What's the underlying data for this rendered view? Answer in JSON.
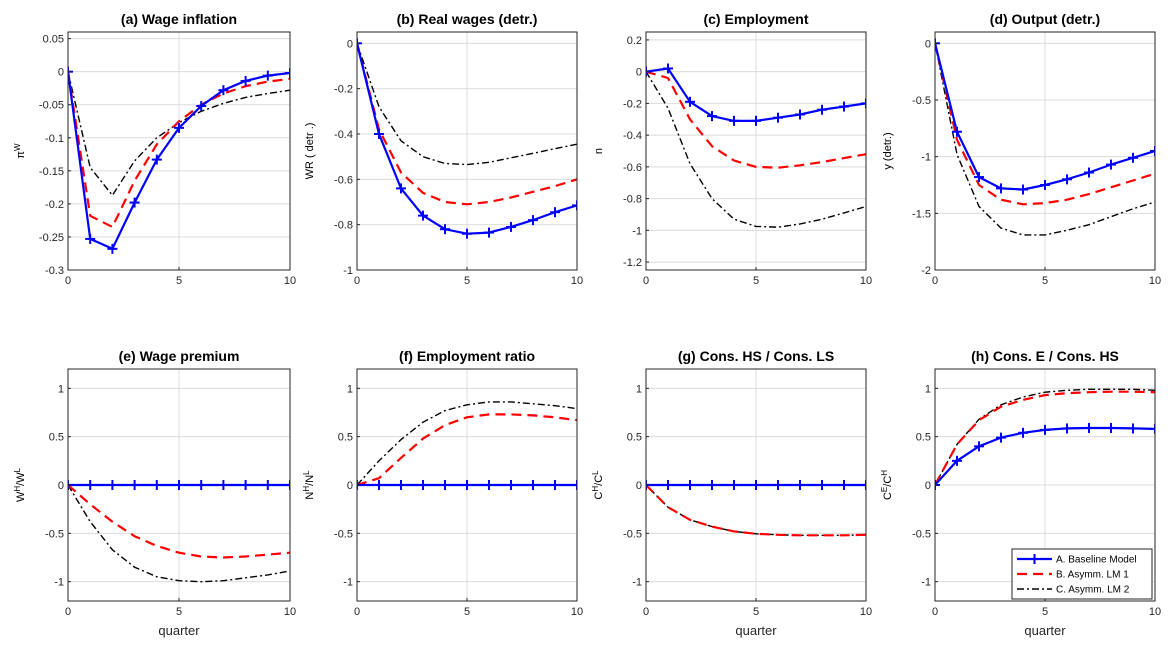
{
  "chart_data": [
    {
      "type": "line",
      "title": "(a) Wage inflation",
      "ylabel": "π^W",
      "xlabel": "",
      "xlim": [
        0,
        10
      ],
      "ylim": [
        -0.3,
        0.06
      ],
      "xticks": [
        0,
        5,
        10
      ],
      "xtick_labels": [
        "0",
        "5",
        "10"
      ],
      "yticks": [
        0.05,
        0,
        -0.05,
        -0.1,
        -0.15,
        -0.2,
        -0.25,
        -0.3
      ],
      "ytick_labels": [
        "0.05",
        "0",
        "-0.05",
        "-0.1",
        "-0.15",
        "-0.2",
        "-0.25",
        "-0.3"
      ],
      "grid": true,
      "x": [
        0,
        1,
        2,
        3,
        4,
        5,
        6,
        7,
        8,
        9,
        10
      ],
      "series": [
        {
          "name": "A. Baseline Model",
          "values": [
            0,
            -0.253,
            -0.268,
            -0.198,
            -0.133,
            -0.085,
            -0.052,
            -0.028,
            -0.014,
            -0.006,
            -0.002
          ]
        },
        {
          "name": "B. Asymm. LM 1",
          "values": [
            0,
            -0.218,
            -0.235,
            -0.165,
            -0.11,
            -0.075,
            -0.05,
            -0.033,
            -0.022,
            -0.015,
            -0.011
          ]
        },
        {
          "name": "C. Asymm. LM 2",
          "values": [
            0,
            -0.145,
            -0.187,
            -0.135,
            -0.1,
            -0.077,
            -0.06,
            -0.048,
            -0.039,
            -0.033,
            -0.028
          ]
        }
      ]
    },
    {
      "type": "line",
      "title": "(b) Real wages (detr.)",
      "ylabel": "WR  ( detr .)",
      "xlabel": "",
      "xlim": [
        0,
        10
      ],
      "ylim": [
        -1,
        0.05
      ],
      "xticks": [
        0,
        5,
        10
      ],
      "xtick_labels": [
        "0",
        "5",
        "10"
      ],
      "yticks": [
        0,
        -0.2,
        -0.4,
        -0.6,
        -0.8,
        -1
      ],
      "ytick_labels": [
        "0",
        "-0.2",
        "-0.4",
        "-0.6",
        "-0.8",
        "-1"
      ],
      "grid": true,
      "x": [
        0,
        1,
        2,
        3,
        4,
        5,
        6,
        7,
        8,
        9,
        10
      ],
      "series": [
        {
          "name": "A. Baseline Model",
          "values": [
            0,
            -0.4,
            -0.64,
            -0.76,
            -0.82,
            -0.84,
            -0.835,
            -0.81,
            -0.78,
            -0.745,
            -0.715
          ]
        },
        {
          "name": "B. Asymm. LM 1",
          "values": [
            0,
            -0.38,
            -0.57,
            -0.66,
            -0.7,
            -0.71,
            -0.7,
            -0.68,
            -0.655,
            -0.63,
            -0.6
          ]
        },
        {
          "name": "C. Asymm. LM 2",
          "values": [
            0,
            -0.28,
            -0.43,
            -0.5,
            -0.53,
            -0.535,
            -0.525,
            -0.505,
            -0.485,
            -0.465,
            -0.445
          ]
        }
      ]
    },
    {
      "type": "line",
      "title": "(c) Employment",
      "ylabel": "n",
      "xlabel": "",
      "xlim": [
        0,
        10
      ],
      "ylim": [
        -1.25,
        0.25
      ],
      "xticks": [
        0,
        5,
        10
      ],
      "xtick_labels": [
        "0",
        "5",
        "10"
      ],
      "yticks": [
        0.2,
        0,
        -0.2,
        -0.4,
        -0.6,
        -0.8,
        -1,
        -1.2
      ],
      "ytick_labels": [
        "0.2",
        "0",
        "-0.2",
        "-0.4",
        "-0.6",
        "-0.8",
        "-1",
        "-1.2"
      ],
      "grid": true,
      "x": [
        0,
        1,
        2,
        3,
        4,
        5,
        6,
        7,
        8,
        9,
        10
      ],
      "series": [
        {
          "name": "A. Baseline Model",
          "values": [
            0,
            0.02,
            -0.19,
            -0.28,
            -0.31,
            -0.31,
            -0.29,
            -0.27,
            -0.24,
            -0.22,
            -0.2
          ]
        },
        {
          "name": "B. Asymm. LM 1",
          "values": [
            0,
            -0.04,
            -0.3,
            -0.47,
            -0.56,
            -0.6,
            -0.605,
            -0.59,
            -0.57,
            -0.545,
            -0.52
          ]
        },
        {
          "name": "C. Asymm. LM 2",
          "values": [
            0,
            -0.23,
            -0.58,
            -0.8,
            -0.93,
            -0.975,
            -0.98,
            -0.96,
            -0.93,
            -0.89,
            -0.85
          ]
        }
      ]
    },
    {
      "type": "line",
      "title": "(d) Output (detr.)",
      "ylabel": "y  (detr.)",
      "xlabel": "",
      "xlim": [
        0,
        10
      ],
      "ylim": [
        -2,
        0.1
      ],
      "xticks": [
        0,
        5,
        10
      ],
      "xtick_labels": [
        "0",
        "5",
        "10"
      ],
      "yticks": [
        0,
        -0.5,
        -1,
        -1.5,
        -2
      ],
      "ytick_labels": [
        "0",
        "-0.5",
        "-1",
        "-1.5",
        "-2"
      ],
      "grid": true,
      "x": [
        0,
        1,
        2,
        3,
        4,
        5,
        6,
        7,
        8,
        9,
        10
      ],
      "series": [
        {
          "name": "A. Baseline Model",
          "values": [
            0,
            -0.78,
            -1.18,
            -1.28,
            -1.29,
            -1.25,
            -1.2,
            -1.14,
            -1.07,
            -1.01,
            -0.95
          ]
        },
        {
          "name": "B. Asymm. LM 1",
          "values": [
            0,
            -0.85,
            -1.25,
            -1.38,
            -1.42,
            -1.41,
            -1.38,
            -1.33,
            -1.27,
            -1.21,
            -1.15
          ]
        },
        {
          "name": "C. Asymm. LM 2",
          "values": [
            0,
            -0.98,
            -1.44,
            -1.63,
            -1.69,
            -1.69,
            -1.65,
            -1.6,
            -1.53,
            -1.46,
            -1.4
          ]
        }
      ]
    },
    {
      "type": "line",
      "title": "(e) Wage premium",
      "ylabel": "W^H/W^L",
      "xlabel": "quarter",
      "xlim": [
        0,
        10
      ],
      "ylim": [
        -1.2,
        1.2
      ],
      "xticks": [
        0,
        5,
        10
      ],
      "xtick_labels": [
        "0",
        "5",
        "10"
      ],
      "yticks": [
        1,
        0.5,
        0,
        -0.5,
        -1
      ],
      "ytick_labels": [
        "1",
        "0.5",
        "0",
        "-0.5",
        "-1"
      ],
      "grid": true,
      "x": [
        0,
        1,
        2,
        3,
        4,
        5,
        6,
        7,
        8,
        9,
        10
      ],
      "series": [
        {
          "name": "A. Baseline Model",
          "values": [
            0,
            0,
            0,
            0,
            0,
            0,
            0,
            0,
            0,
            0,
            0
          ]
        },
        {
          "name": "B. Asymm. LM 1",
          "values": [
            0,
            -0.2,
            -0.38,
            -0.53,
            -0.63,
            -0.7,
            -0.74,
            -0.75,
            -0.74,
            -0.72,
            -0.7
          ]
        },
        {
          "name": "C. Asymm. LM 2",
          "values": [
            0,
            -0.38,
            -0.67,
            -0.85,
            -0.95,
            -0.99,
            -1.0,
            -0.99,
            -0.96,
            -0.93,
            -0.89
          ]
        }
      ]
    },
    {
      "type": "line",
      "title": "(f) Employment ratio",
      "ylabel": "N^H/N^L",
      "xlabel": "",
      "xlim": [
        0,
        10
      ],
      "ylim": [
        -1.2,
        1.2
      ],
      "xticks": [
        0,
        5,
        10
      ],
      "xtick_labels": [
        "0",
        "5",
        "10"
      ],
      "yticks": [
        1,
        0.5,
        0,
        -0.5,
        -1
      ],
      "ytick_labels": [
        "1",
        "0.5",
        "0",
        "-0.5",
        "-1"
      ],
      "grid": true,
      "x": [
        0,
        1,
        2,
        3,
        4,
        5,
        6,
        7,
        8,
        9,
        10
      ],
      "series": [
        {
          "name": "A. Baseline Model",
          "values": [
            0,
            0,
            0,
            0,
            0,
            0,
            0,
            0,
            0,
            0,
            0
          ]
        },
        {
          "name": "B. Asymm. LM 1",
          "values": [
            0,
            0.07,
            0.28,
            0.48,
            0.62,
            0.7,
            0.73,
            0.73,
            0.72,
            0.7,
            0.67
          ]
        },
        {
          "name": "C. Asymm. LM 2",
          "values": [
            0,
            0.25,
            0.47,
            0.65,
            0.77,
            0.83,
            0.86,
            0.86,
            0.84,
            0.82,
            0.79
          ]
        }
      ]
    },
    {
      "type": "line",
      "title": "(g) Cons. HS / Cons. LS",
      "ylabel": "C^H/C^L",
      "xlabel": "quarter",
      "xlim": [
        0,
        10
      ],
      "ylim": [
        -1.2,
        1.2
      ],
      "xticks": [
        0,
        5,
        10
      ],
      "xtick_labels": [
        "0",
        "5",
        "10"
      ],
      "yticks": [
        1,
        0.5,
        0,
        -0.5,
        -1
      ],
      "ytick_labels": [
        "1",
        "0.5",
        "0",
        "-0.5",
        "-1"
      ],
      "grid": true,
      "x": [
        0,
        1,
        2,
        3,
        4,
        5,
        6,
        7,
        8,
        9,
        10
      ],
      "series": [
        {
          "name": "A. Baseline Model",
          "values": [
            0,
            0,
            0,
            0,
            0,
            0,
            0,
            0,
            0,
            0,
            0
          ]
        },
        {
          "name": "B. Asymm. LM 1",
          "values": [
            0,
            -0.23,
            -0.36,
            -0.43,
            -0.48,
            -0.505,
            -0.515,
            -0.52,
            -0.52,
            -0.52,
            -0.515
          ]
        },
        {
          "name": "C. Asymm. LM 2",
          "values": [
            0,
            -0.23,
            -0.36,
            -0.43,
            -0.48,
            -0.505,
            -0.515,
            -0.52,
            -0.52,
            -0.52,
            -0.515
          ]
        }
      ]
    },
    {
      "type": "line",
      "title": "(h) Cons. E / Cons. HS",
      "ylabel": "C^E/C^H",
      "xlabel": "quarter",
      "xlim": [
        0,
        10
      ],
      "ylim": [
        -1.2,
        1.2
      ],
      "xticks": [
        0,
        5,
        10
      ],
      "xtick_labels": [
        "0",
        "5",
        "10"
      ],
      "yticks": [
        1,
        0.5,
        0,
        -0.5,
        -1
      ],
      "ytick_labels": [
        "1",
        "0.5",
        "0",
        "-0.5",
        "-1"
      ],
      "grid": true,
      "legend": "bottom-right",
      "x": [
        0,
        1,
        2,
        3,
        4,
        5,
        6,
        7,
        8,
        9,
        10
      ],
      "series": [
        {
          "name": "A. Baseline Model",
          "values": [
            0,
            0.25,
            0.4,
            0.49,
            0.54,
            0.57,
            0.585,
            0.59,
            0.59,
            0.585,
            0.58
          ]
        },
        {
          "name": "B. Asymm. LM 1",
          "values": [
            0,
            0.42,
            0.67,
            0.81,
            0.88,
            0.93,
            0.95,
            0.96,
            0.965,
            0.965,
            0.96
          ]
        },
        {
          "name": "C. Asymm. LM 2",
          "values": [
            0,
            0.42,
            0.68,
            0.83,
            0.91,
            0.96,
            0.98,
            0.99,
            0.99,
            0.99,
            0.98
          ]
        }
      ]
    }
  ],
  "legend": {
    "entries": [
      "A. Baseline Model",
      "B. Asymm. LM 1",
      "C. Asymm. LM 2"
    ]
  },
  "styles": {
    "series_colors": [
      "#0000ff",
      "#ff0000",
      "#000000"
    ],
    "series_dash": [
      "solid",
      "dashed",
      "dashdot"
    ],
    "series_markers": [
      "plus",
      "none",
      "none"
    ],
    "grid_color": "#dcdcdc",
    "axis_color": "#262626"
  }
}
